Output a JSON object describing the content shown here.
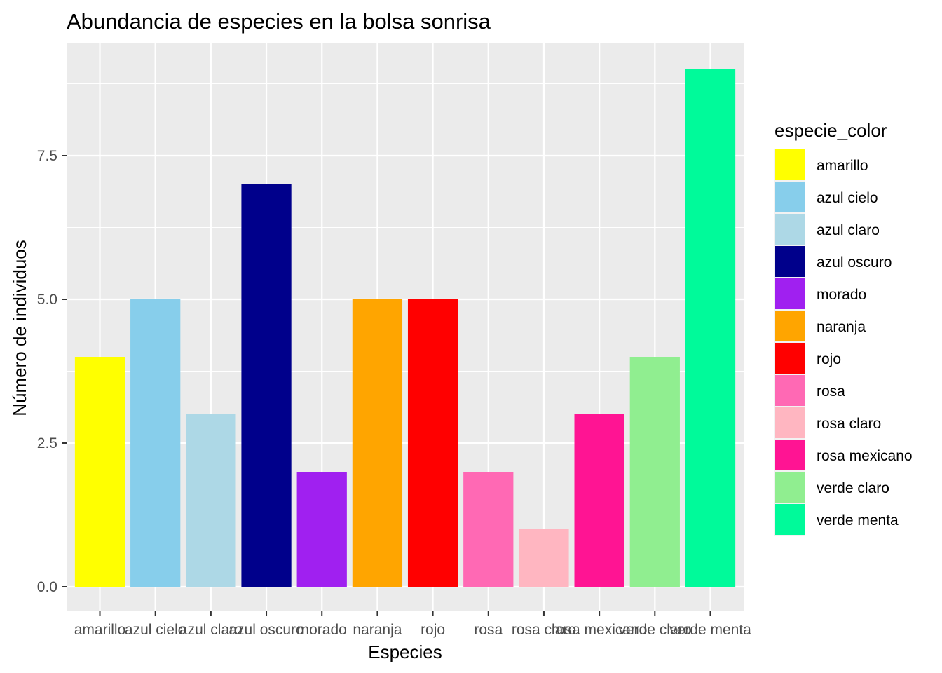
{
  "chart_data": {
    "type": "bar",
    "title": "Abundancia de especies en la bolsa sonrisa",
    "xlabel": "Especies",
    "ylabel": "Número de individuos",
    "categories": [
      "amarillo",
      "azul cielo",
      "azul claro",
      "azul oscuro",
      "morado",
      "naranja",
      "rojo",
      "rosa",
      "rosa claro",
      "rosa mexicano",
      "verde claro",
      "verde menta"
    ],
    "values": [
      4,
      5,
      3,
      7,
      2,
      5,
      5,
      2,
      1,
      3,
      4,
      9
    ],
    "colors": [
      "#FFFF00",
      "#87CEEB",
      "#ADD8E6",
      "#00008B",
      "#A020F0",
      "#FFA500",
      "#FF0000",
      "#FF69B4",
      "#FFB6C1",
      "#FF1493",
      "#90EE90",
      "#00FA9A"
    ],
    "ylim": [
      0,
      9.45
    ],
    "yticks": [
      0,
      2.5,
      5,
      7.5
    ],
    "ytick_labels": [
      "0.0",
      "2.5",
      "5.0",
      "7.5"
    ],
    "grid": true,
    "panel_background": "#EBEBEB",
    "legend": {
      "title": "especie_color",
      "position": "right"
    }
  }
}
